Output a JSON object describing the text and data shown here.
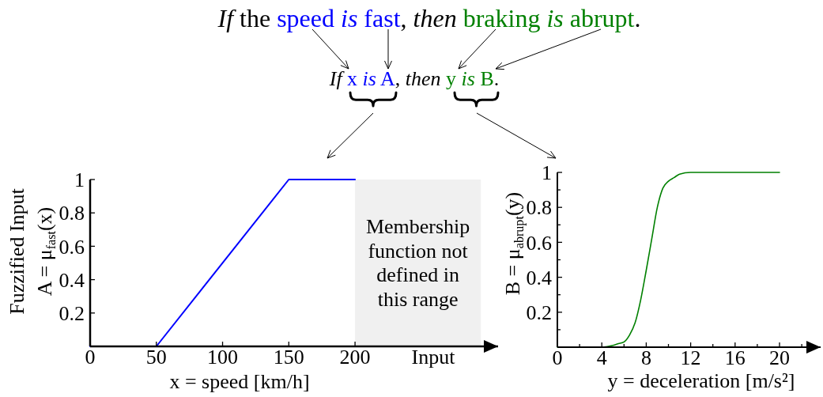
{
  "chart_data": [
    {
      "type": "other",
      "annotations": [
        "If the speed is fast, then braking is abrupt.",
        "If x is A, then y is B."
      ]
    },
    {
      "type": "line",
      "xlabel": "x = speed [km/h]",
      "ylabel": "Fuzzified Input\nA = μ$_{fast}$(x)",
      "annotations": [
        "Input"
      ],
      "x": [
        0,
        50,
        150,
        200
      ],
      "series": [
        {
          "color": "#0000ff",
          "values": [
            0,
            0,
            1,
            1
          ]
        }
      ],
      "xlim": [
        0,
        308
      ],
      "ylim": [
        0,
        1
      ],
      "xticks": [
        0,
        50,
        100,
        150,
        200
      ],
      "yticks": [
        0.2,
        0.4,
        0.6,
        0.8,
        1
      ],
      "bands": [
        {
          "axis": "x",
          "from": 200,
          "to": 295,
          "label": "Membership function not defined in this range",
          "color": "#f0f0f0"
        }
      ]
    },
    {
      "type": "line",
      "xlabel": "y = deceleration [m/s²]",
      "ylabel": "B = μ$_{abrupt}$(y)",
      "x": [
        0,
        4,
        5,
        5.5,
        6,
        6.5,
        7,
        7.5,
        8,
        8.5,
        9,
        9.5,
        10,
        10.5,
        11,
        12,
        13,
        20
      ],
      "series": [
        {
          "color": "#008000",
          "values": [
            0,
            0,
            0.01,
            0.02,
            0.03,
            0.07,
            0.14,
            0.27,
            0.44,
            0.62,
            0.8,
            0.91,
            0.95,
            0.97,
            0.99,
            1,
            1,
            1
          ]
        }
      ],
      "xlim": [
        0,
        23.7
      ],
      "ylim": [
        0,
        1
      ],
      "xticks": [
        0,
        {
          "value": 2,
          "label": null
        },
        4,
        {
          "value": 6,
          "label": null
        },
        8,
        {
          "value": 10,
          "label": null
        },
        12,
        {
          "value": 14,
          "label": null
        },
        16,
        {
          "value": 18,
          "label": null
        },
        20,
        {
          "value": 22,
          "label": null
        }
      ],
      "yticks": [
        {
          "value": 0.1,
          "label": null
        },
        0.2,
        {
          "value": 0.3,
          "label": null
        },
        0.4,
        {
          "value": 0.5,
          "label": null
        },
        0.6,
        {
          "value": 0.7,
          "label": null
        },
        0.8,
        {
          "value": 0.9,
          "label": null
        },
        1
      ]
    }
  ]
}
